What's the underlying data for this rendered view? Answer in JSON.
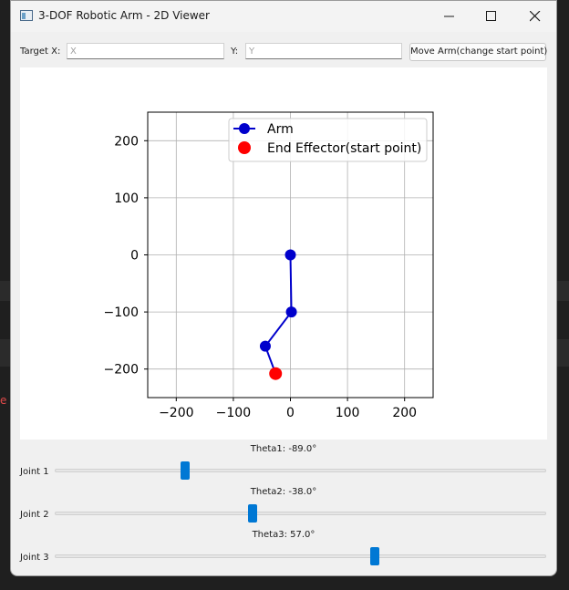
{
  "window": {
    "title": "3-DOF Robotic Arm - 2D Viewer"
  },
  "target_bar": {
    "x_label": "Target X:",
    "x_placeholder": "X",
    "y_label": "Y:",
    "y_placeholder": "Y",
    "move_button": "Move Arm(change start point)"
  },
  "chart_data": {
    "type": "line",
    "xlim": [
      -250,
      250
    ],
    "ylim": [
      -250,
      250
    ],
    "xticks": [
      -200,
      -100,
      0,
      100,
      200
    ],
    "yticks": [
      -200,
      -100,
      0,
      100,
      200
    ],
    "xtick_labels": [
      "−200",
      "−100",
      "0",
      "100",
      "200"
    ],
    "ytick_labels": [
      "−200",
      "−100",
      "0",
      "100",
      "200"
    ],
    "grid": true,
    "legend_position": "upper-right",
    "series": [
      {
        "name": "Arm",
        "color": "#0000cc",
        "marker": "circle",
        "points": [
          [
            0,
            0
          ],
          [
            1.7,
            -100
          ],
          [
            -44,
            -160
          ],
          [
            -26,
            -208
          ]
        ]
      },
      {
        "name": "End Effector(start point)",
        "color": "#ff0000",
        "marker": "circle",
        "points": [
          [
            -26,
            -208
          ]
        ]
      }
    ]
  },
  "joints": [
    {
      "label": "Joint 1",
      "caption": "Theta1: -89.0°",
      "fraction": 0.26
    },
    {
      "label": "Joint 2",
      "caption": "Theta2: -38.0°",
      "fraction": 0.4
    },
    {
      "label": "Joint 3",
      "caption": "Theta3: 57.0°",
      "fraction": 0.655
    }
  ]
}
